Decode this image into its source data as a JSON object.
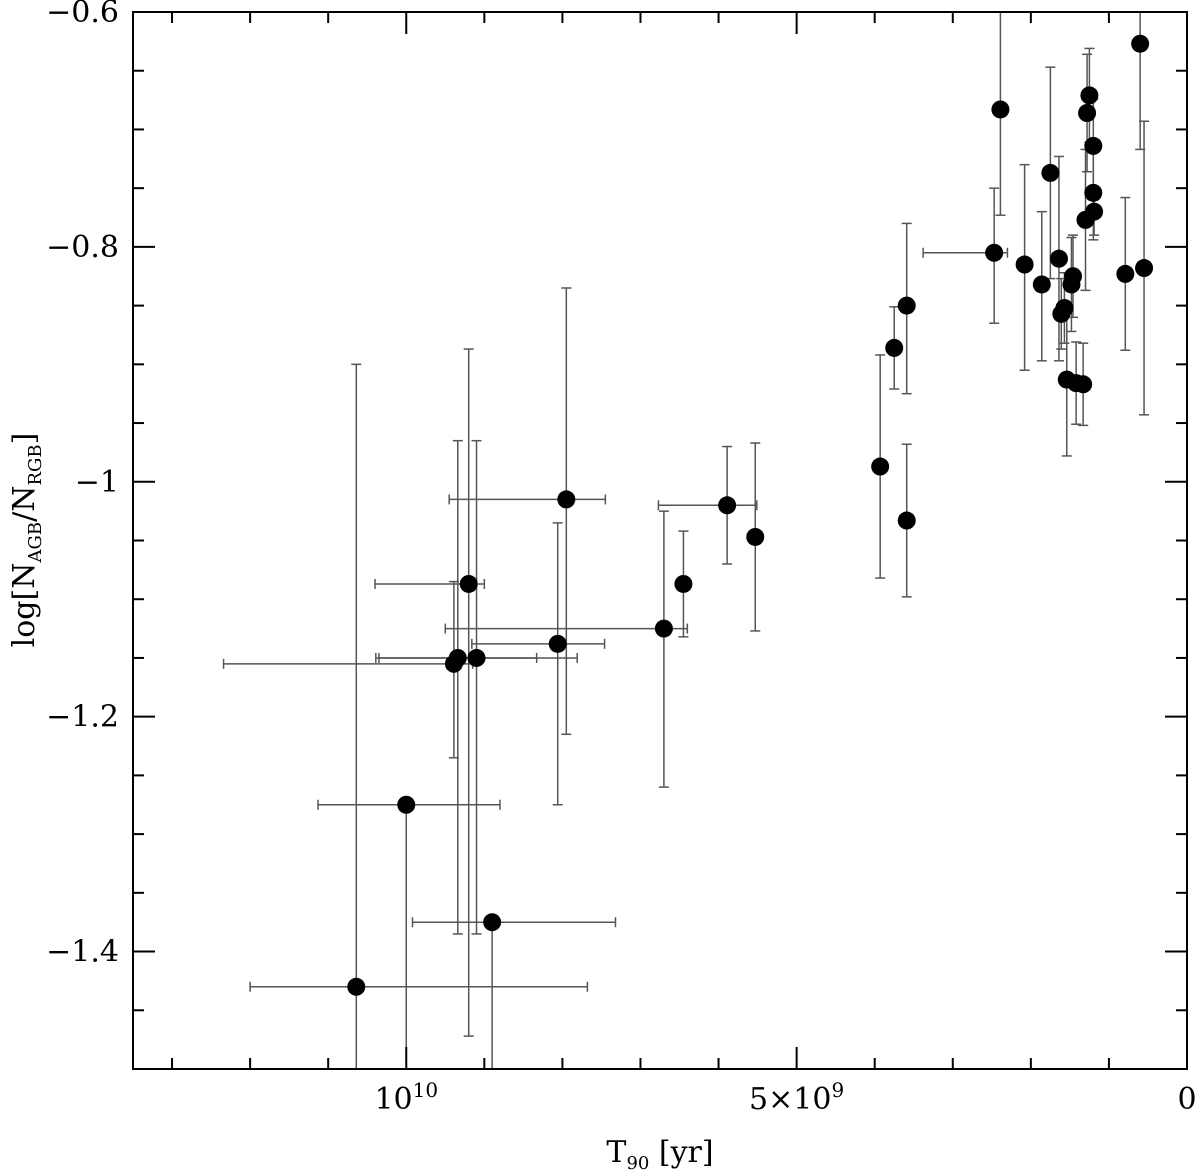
{
  "chart_data": {
    "type": "scatter",
    "xlabel": {
      "main": "T",
      "sub": "90",
      "unit": " [yr]"
    },
    "ylabel": {
      "prefix": "log[N",
      "sub1": "AGB",
      "mid": "/N",
      "sub2": "RGB",
      "suffix": "]"
    },
    "xlim": [
      13500000000,
      0
    ],
    "ylim": [
      -1.5,
      -0.6
    ],
    "x_reversed": true,
    "x_ticks": [
      {
        "value": 10000000000,
        "base": "10",
        "exp": "10"
      },
      {
        "value": 5000000000,
        "base": "5×10",
        "exp": "9"
      },
      {
        "value": 0,
        "base": "0",
        "exp": ""
      }
    ],
    "y_ticks": [
      {
        "value": -0.6,
        "label": "−0.6"
      },
      {
        "value": -0.8,
        "label": "−0.8"
      },
      {
        "value": -1.0,
        "label": "−1"
      },
      {
        "value": -1.2,
        "label": "−1.2"
      },
      {
        "value": -1.4,
        "label": "−1.4"
      }
    ],
    "grid": false,
    "marker_color": "#000000",
    "points": [
      {
        "x": 10640000000,
        "y": -1.43,
        "xerr": [
          1360000000,
          2960000000
        ],
        "yerr": [
          0.1,
          0.53
        ]
      },
      {
        "x": 10000000000,
        "y": -1.275,
        "xerr": [
          1130000000,
          1200000000
        ],
        "yerr": [
          0.24,
          0.0
        ]
      },
      {
        "x": 8900000000,
        "y": -1.375,
        "xerr": [
          1020000000,
          1580000000
        ],
        "yerr": [
          0.21,
          0.0
        ]
      },
      {
        "x": 9390000000,
        "y": -1.155,
        "xerr": [
          2950000000,
          240000000
        ],
        "yerr": [
          0.08,
          0.07
        ]
      },
      {
        "x": 9340000000,
        "y": -1.15,
        "xerr": [
          1010000000,
          1010000000
        ],
        "yerr": [
          0.235,
          0.185
        ]
      },
      {
        "x": 9200000000,
        "y": -1.087,
        "xerr": [
          1200000000,
          200000000
        ],
        "yerr": [
          0.385,
          0.2
        ]
      },
      {
        "x": 9100000000,
        "y": -1.15,
        "xerr": [
          1290000000,
          1290000000
        ],
        "yerr": [
          0.235,
          0.185
        ]
      },
      {
        "x": 8060000000,
        "y": -1.138,
        "xerr": [
          1100000000,
          600000000
        ],
        "yerr": [
          0.137,
          0.103
        ]
      },
      {
        "x": 7950000000,
        "y": -1.015,
        "xerr": [
          1500000000,
          500000000
        ],
        "yerr": [
          0.2,
          0.18
        ]
      },
      {
        "x": 6700000000,
        "y": -1.125,
        "xerr": [
          2800000000,
          300000000
        ],
        "yerr": [
          0.135,
          0.1
        ]
      },
      {
        "x": 6450000000,
        "y": -1.087,
        "xerr": [
          0,
          0
        ],
        "yerr": [
          0.045,
          0.045
        ]
      },
      {
        "x": 5890000000,
        "y": -1.02,
        "xerr": [
          880000000,
          380000000
        ],
        "yerr": [
          0.05,
          0.05
        ]
      },
      {
        "x": 5530000000,
        "y": -1.047,
        "xerr": [
          0,
          0
        ],
        "yerr": [
          0.08,
          0.08
        ]
      },
      {
        "x": 3930000000,
        "y": -0.987,
        "xerr": [
          0,
          0
        ],
        "yerr": [
          0.095,
          0.095
        ]
      },
      {
        "x": 3750000000,
        "y": -0.886,
        "xerr": [
          0,
          0
        ],
        "yerr": [
          0.035,
          0.035
        ]
      },
      {
        "x": 3590000000,
        "y": -0.85,
        "xerr": [
          0,
          0
        ],
        "yerr": [
          0.075,
          0.07
        ]
      },
      {
        "x": 3590000000,
        "y": -1.033,
        "xerr": [
          0,
          0
        ],
        "yerr": [
          0.065,
          0.065
        ]
      },
      {
        "x": 2470000000,
        "y": -0.805,
        "xerr": [
          910000000,
          170000000
        ],
        "yerr": [
          0.06,
          0.055
        ]
      },
      {
        "x": 2390000000,
        "y": -0.683,
        "xerr": [
          0,
          0
        ],
        "yerr": [
          0.09,
          0.09
        ]
      },
      {
        "x": 2080000000,
        "y": -0.815,
        "xerr": [
          0,
          0
        ],
        "yerr": [
          0.09,
          0.085
        ]
      },
      {
        "x": 1860000000,
        "y": -0.832,
        "xerr": [
          0,
          0
        ],
        "yerr": [
          0.065,
          0.062
        ]
      },
      {
        "x": 1750000000,
        "y": -0.737,
        "xerr": [
          0,
          0
        ],
        "yerr": [
          0.09,
          0.09
        ]
      },
      {
        "x": 1640000000,
        "y": -0.81,
        "xerr": [
          0,
          0
        ],
        "yerr": [
          0.087,
          0.087
        ]
      },
      {
        "x": 1610000000,
        "y": -0.857,
        "xerr": [
          0,
          0
        ],
        "yerr": [
          0.03,
          0.03
        ]
      },
      {
        "x": 1570000000,
        "y": -0.852,
        "xerr": [
          0,
          0
        ],
        "yerr": [
          0.03,
          0.03
        ]
      },
      {
        "x": 1540000000,
        "y": -0.913,
        "xerr": [
          0,
          0
        ],
        "yerr": [
          0.065,
          0.065
        ]
      },
      {
        "x": 1480000000,
        "y": -0.832,
        "xerr": [
          0,
          0
        ],
        "yerr": [
          0.04,
          0.04
        ]
      },
      {
        "x": 1460000000,
        "y": -0.825,
        "xerr": [
          0,
          0
        ],
        "yerr": [
          0.035,
          0.035
        ]
      },
      {
        "x": 1420000000,
        "y": -0.916,
        "xerr": [
          0,
          0
        ],
        "yerr": [
          0.035,
          0.035
        ]
      },
      {
        "x": 1330000000,
        "y": -0.917,
        "xerr": [
          0,
          0
        ],
        "yerr": [
          0.035,
          0.035
        ]
      },
      {
        "x": 1300000000,
        "y": -0.777,
        "xerr": [
          0,
          0
        ],
        "yerr": [
          0.06,
          0.06
        ]
      },
      {
        "x": 1280000000,
        "y": -0.686,
        "xerr": [
          0,
          0
        ],
        "yerr": [
          0.05,
          0.05
        ]
      },
      {
        "x": 1250000000,
        "y": -0.671,
        "xerr": [
          0,
          0
        ],
        "yerr": [
          0.04,
          0.04
        ]
      },
      {
        "x": 1200000000,
        "y": -0.714,
        "xerr": [
          0,
          0
        ],
        "yerr": [
          0.04,
          0.04
        ]
      },
      {
        "x": 1200000000,
        "y": -0.754,
        "xerr": [
          0,
          0
        ],
        "yerr": [
          0.04,
          0.04
        ]
      },
      {
        "x": 1190000000,
        "y": -0.77,
        "xerr": [
          0,
          0
        ],
        "yerr": [
          0.02,
          0.02
        ]
      },
      {
        "x": 790000000,
        "y": -0.823,
        "xerr": [
          0,
          0
        ],
        "yerr": [
          0.065,
          0.065
        ]
      },
      {
        "x": 600000000,
        "y": -0.627,
        "xerr": [
          0,
          0
        ],
        "yerr": [
          0.09,
          0.09
        ]
      },
      {
        "x": 550000000,
        "y": -0.818,
        "xerr": [
          0,
          0
        ],
        "yerr": [
          0.125,
          0.125
        ]
      }
    ]
  }
}
